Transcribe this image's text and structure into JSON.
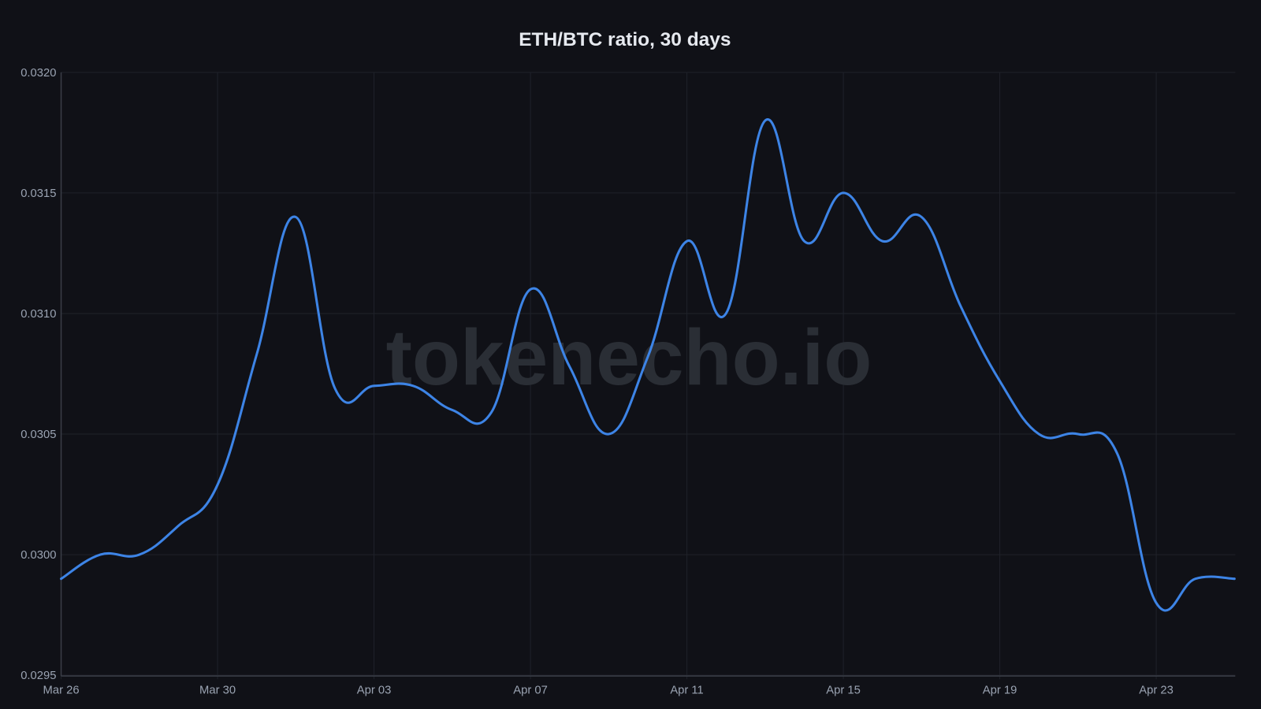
{
  "chart_data": {
    "type": "line",
    "title": "ETH/BTC ratio, 30 days",
    "xlabel": "",
    "ylabel": "",
    "ylim": [
      0.0295,
      0.032
    ],
    "grid": true,
    "legend": null,
    "watermark": "tokenecho.io",
    "line_color": "#3d84e6",
    "x_tick_labels": [
      "Mar 26",
      "Mar 30",
      "Apr 03",
      "Apr 07",
      "Apr 11",
      "Apr 15",
      "Apr 19",
      "Apr 23"
    ],
    "y_tick_labels": [
      "0.0295",
      "0.0300",
      "0.0305",
      "0.0310",
      "0.0315",
      "0.0320"
    ],
    "y_ticks": [
      0.0295,
      0.03,
      0.0305,
      0.031,
      0.0315,
      0.032
    ],
    "x": [
      "Mar 26",
      "Mar 27",
      "Mar 28",
      "Mar 29",
      "Mar 30",
      "Mar 31",
      "Apr 01",
      "Apr 02",
      "Apr 03",
      "Apr 04",
      "Apr 05",
      "Apr 06",
      "Apr 07",
      "Apr 08",
      "Apr 09",
      "Apr 10",
      "Apr 11",
      "Apr 12",
      "Apr 13",
      "Apr 14",
      "Apr 15",
      "Apr 16",
      "Apr 17",
      "Apr 18",
      "Apr 19",
      "Apr 20",
      "Apr 21",
      "Apr 22",
      "Apr 23",
      "Apr 24",
      "Apr 25"
    ],
    "series": [
      {
        "name": "ETH/BTC",
        "values": [
          0.0299,
          0.03,
          0.03,
          0.03012,
          0.03029,
          0.03083,
          0.0314,
          0.03069,
          0.0307,
          0.0307,
          0.0306,
          0.03059,
          0.0311,
          0.03078,
          0.0305,
          0.03082,
          0.0313,
          0.031,
          0.0318,
          0.0313,
          0.0315,
          0.0313,
          0.0314,
          0.03103,
          0.03072,
          0.0305,
          0.0305,
          0.03042,
          0.0298,
          0.0299,
          0.0299
        ]
      }
    ]
  },
  "colors": {
    "background": "#101117",
    "line": "#3d84e6",
    "grid": "#1f222a",
    "tick_text": "#9aa3b2",
    "title_text": "#e6e9ef",
    "watermark": "#2a2e35"
  }
}
